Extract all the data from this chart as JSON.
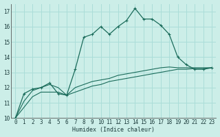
{
  "xlabel": "Humidex (Indice chaleur)",
  "bg_color": "#cceee8",
  "grid_color": "#aaddd8",
  "line_color": "#1a6b5a",
  "xlim": [
    -0.5,
    23.5
  ],
  "ylim": [
    10,
    17.5
  ],
  "yticks": [
    10,
    11,
    12,
    13,
    14,
    15,
    16,
    17
  ],
  "xticks": [
    0,
    1,
    2,
    3,
    4,
    5,
    6,
    7,
    8,
    9,
    10,
    11,
    12,
    13,
    14,
    15,
    16,
    17,
    18,
    19,
    20,
    21,
    22,
    23
  ],
  "curve1_x": [
    0,
    1,
    2,
    3,
    4,
    5,
    6,
    7,
    8,
    9,
    10,
    11,
    12,
    13,
    14,
    15,
    16,
    17,
    18,
    19,
    20,
    21,
    22,
    23
  ],
  "curve1_y": [
    10.0,
    11.6,
    11.9,
    12.0,
    12.3,
    11.6,
    11.5,
    13.2,
    15.3,
    15.5,
    16.0,
    15.5,
    16.0,
    16.4,
    17.2,
    16.5,
    16.5,
    16.1,
    15.5,
    14.0,
    13.5,
    13.2,
    13.2,
    13.3
  ],
  "curve2_x": [
    0,
    1,
    2,
    3,
    4,
    5,
    6,
    7,
    8,
    9,
    10,
    11,
    12,
    13,
    14,
    15,
    16,
    17,
    18,
    19,
    20,
    21,
    22,
    23
  ],
  "curve2_y": [
    10.0,
    11.1,
    11.8,
    12.0,
    12.2,
    12.0,
    11.5,
    12.0,
    12.2,
    12.4,
    12.5,
    12.6,
    12.8,
    12.9,
    13.0,
    13.1,
    13.2,
    13.3,
    13.35,
    13.3,
    13.3,
    13.3,
    13.3,
    13.3
  ],
  "curve3_x": [
    0,
    1,
    2,
    3,
    4,
    5,
    6,
    7,
    8,
    9,
    10,
    11,
    12,
    13,
    14,
    15,
    16,
    17,
    18,
    19,
    20,
    21,
    22,
    23
  ],
  "curve3_y": [
    10.0,
    10.7,
    11.4,
    11.7,
    11.7,
    11.7,
    11.5,
    11.7,
    11.9,
    12.1,
    12.2,
    12.4,
    12.5,
    12.6,
    12.7,
    12.8,
    12.9,
    13.0,
    13.1,
    13.2,
    13.2,
    13.25,
    13.25,
    13.3
  ]
}
